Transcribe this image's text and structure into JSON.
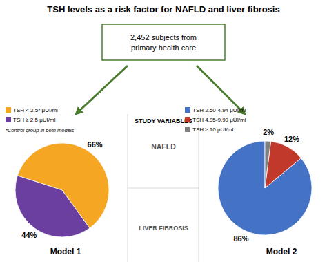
{
  "title": "TSH levels as a risk factor for NAFLD and liver fibrosis",
  "annotations": [
    "2,452 subjects from\nprimary health care",
    "STUDY VARIABLES",
    "*Control group in both models",
    "NAFLD",
    "LIVER FIBROSIS"
  ],
  "color": "#4A7C2F",
  "chart_data": [
    {
      "type": "pie",
      "title": "Model 1",
      "categories": [
        "TSH < 2.5* μUI/ml",
        "TSH ≥ 2.5 μUI/ml"
      ],
      "values": [
        66,
        44
      ],
      "value_labels": [
        "66%",
        "44%"
      ],
      "colors": [
        "#F5A623",
        "#6B3FA0"
      ],
      "data_labels": true,
      "legend": "upper left"
    },
    {
      "type": "pie",
      "title": "Model 2",
      "categories": [
        "TSH 2.50-4.94 μUI/ml",
        "TSH 4.95-9.99 μUI/ml",
        "TSH ≥ 10 μUI/ml"
      ],
      "values": [
        86,
        12,
        2
      ],
      "value_labels": [
        "86%",
        "12%",
        "2%"
      ],
      "colors": [
        "#4472C4",
        "#C0392B",
        "#808080"
      ],
      "data_labels": true,
      "legend": "upper right"
    }
  ]
}
